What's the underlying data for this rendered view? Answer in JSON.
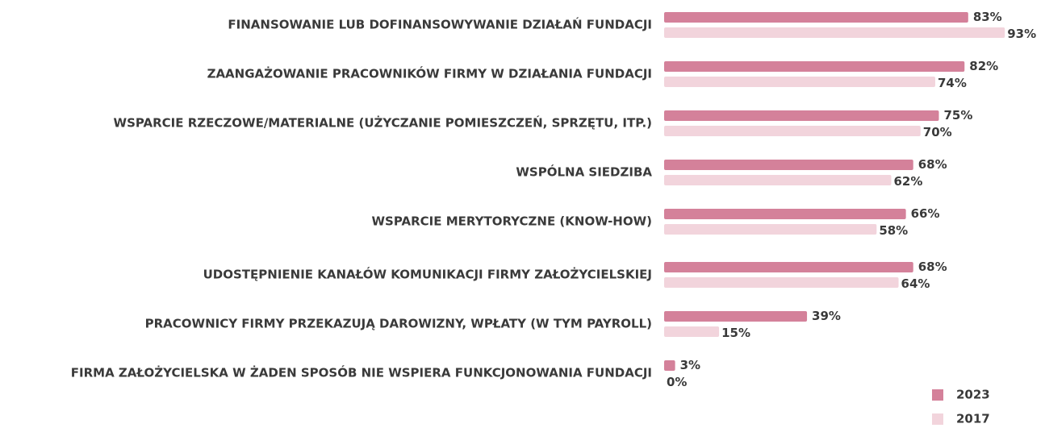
{
  "chart_data": {
    "type": "bar",
    "orientation": "horizontal",
    "categories": [
      "FINANSOWANIE LUB DOFINANSOWYWANIE DZIAŁAŃ FUNDACJI",
      "ZAANGAŻOWANIE PRACOWNIKÓW FIRMY W DZIAŁANIA FUNDACJI",
      "WSPARCIE RZECZOWE/MATERIALNE (UŻYCZANIE POMIESZCZEŃ, SPRZĘTU, ITP.)",
      "WSPÓLNA SIEDZIBA",
      "WSPARCIE MERYTORYCZNE (KNOW-HOW)",
      "UDOSTĘPNIENIE KANAŁÓW KOMUNIKACJI FIRMY ZAŁOŻYCIELSKIEJ",
      "PRACOWNICY FIRMY PRZEKAZUJĄ DAROWIZNY, WPŁATY (W TYM PAYROLL)",
      "FIRMA ZAŁOŻYCIELSKA W ŻADEN SPOSÓB NIE WSPIERA FUNKCJONOWANIA FUNDACJI"
    ],
    "series": [
      {
        "name": "2023",
        "color": "#d4819a",
        "values": [
          83,
          82,
          75,
          68,
          66,
          68,
          39,
          3
        ],
        "value_labels": [
          "83%",
          "82%",
          "75%",
          "68%",
          "66%",
          "68%",
          "39%",
          "3%"
        ]
      },
      {
        "name": "2017",
        "color": "#f2d4dc",
        "values": [
          93,
          74,
          70,
          62,
          58,
          64,
          15,
          0
        ],
        "value_labels": [
          "93%",
          "74%",
          "70%",
          "62%",
          "58%",
          "64%",
          "15%",
          "0%"
        ]
      }
    ],
    "legend": "bottom-right"
  }
}
